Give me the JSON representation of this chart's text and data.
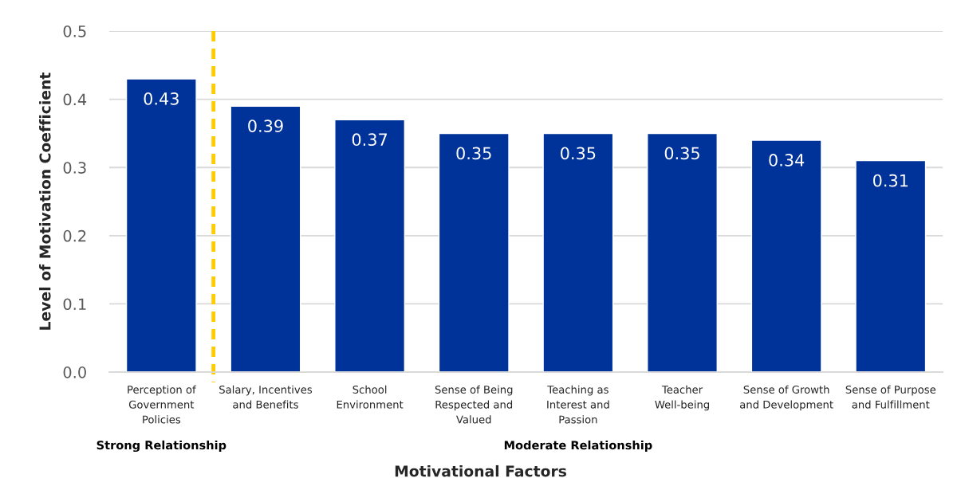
{
  "chart_data": {
    "type": "bar",
    "xlabel": "Motivational Factors",
    "ylabel": "Level of Motivation Coefficient",
    "categories": [
      "Perception of Government Policies",
      "Salary, Incentives and Benefits",
      "School Environment",
      "Sense of Being Respected and Valued",
      "Teaching as Interest and Passion",
      "Teacher Well-being",
      "Sense of Growth and Development",
      "Sense of Purpose and Fulfillment"
    ],
    "values": [
      0.43,
      0.39,
      0.37,
      0.35,
      0.35,
      0.35,
      0.34,
      0.31
    ],
    "color": "#003399",
    "ylim": [
      0,
      0.5
    ],
    "yticks": [
      {
        "value": 0,
        "label": "0.0"
      },
      0.1,
      0.2,
      0.3,
      0.4,
      0.5
    ],
    "grid": "y",
    "data_labels": true,
    "annotations": [
      "Strong Relationship",
      "Moderate Relationship"
    ]
  }
}
